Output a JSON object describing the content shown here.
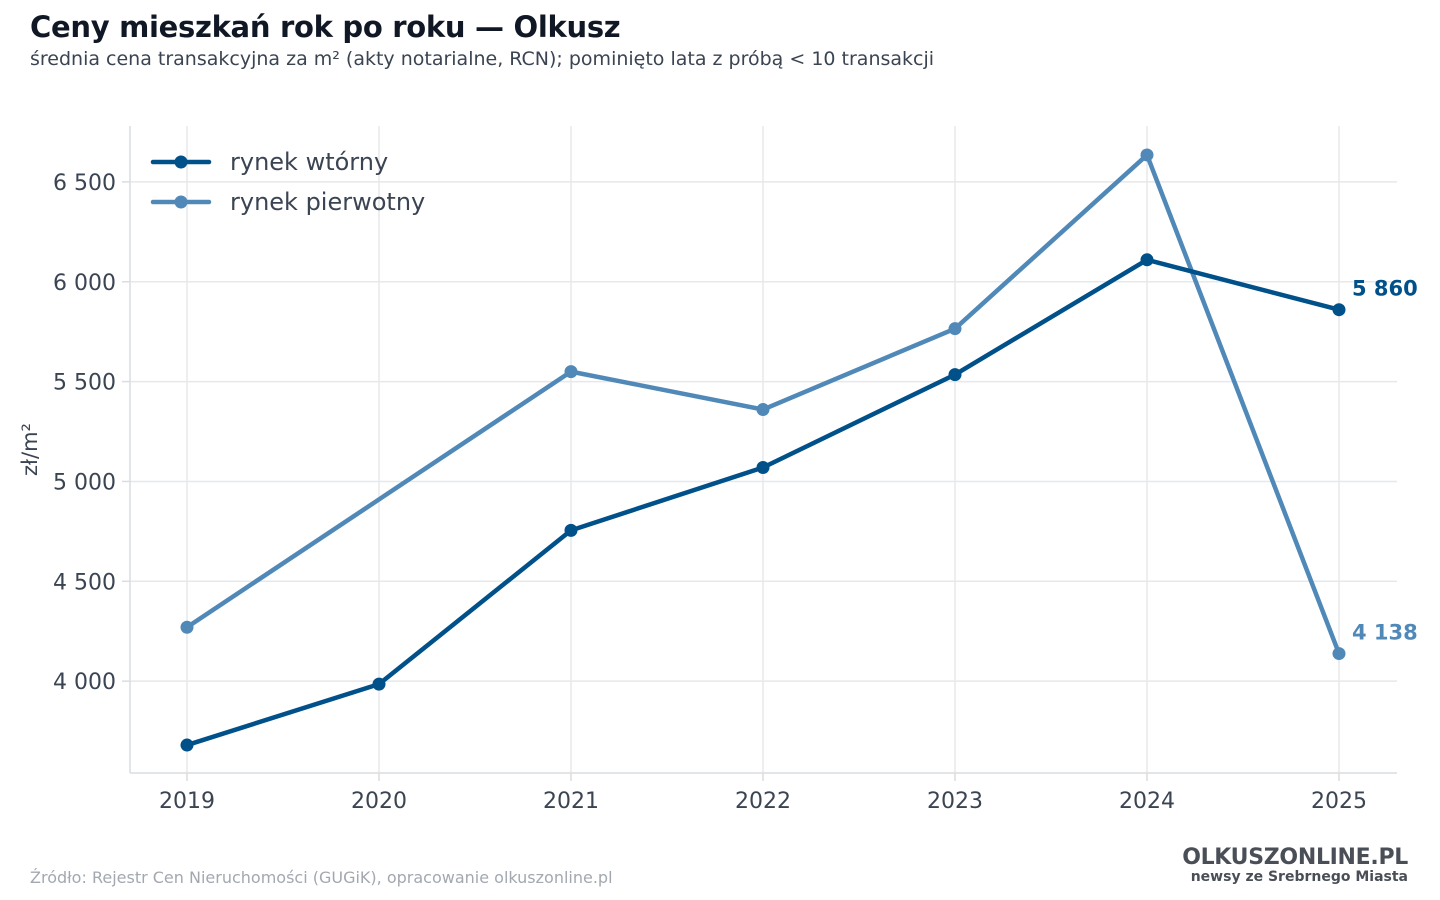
{
  "header": {
    "title": "Ceny mieszkań rok po roku — Olkusz",
    "subtitle": "średnia cena transakcyjna za m² (akty notarialne, RCN); pominięto lata z próbą < 10 transakcji"
  },
  "footer": {
    "source": "Źródło: Rejestr Cen Nieruchomości (GUGiK), opracowanie olkuszonline.pl",
    "brand_name": "OLKUSZONLINE.PL",
    "brand_tagline": "newsy ze Srebrnego Miasta"
  },
  "chart_data": {
    "type": "line",
    "title": "Ceny mieszkań rok po roku — Olkusz",
    "subtitle": "średnia cena transakcyjna za m² (akty notarialne, RCN); pominięto lata z próbą < 10 transakcji",
    "xlabel": "",
    "ylabel": "zł/m²",
    "categories": [
      "2019",
      "2020",
      "2021",
      "2022",
      "2023",
      "2024",
      "2025"
    ],
    "ylim": [
      3540,
      6780
    ],
    "yticks": [
      4000,
      4500,
      5000,
      5500,
      6000,
      6500
    ],
    "ytick_labels": [
      "4 000",
      "4 500",
      "5 000",
      "5 500",
      "6 000",
      "6 500"
    ],
    "grid": true,
    "legend_position": "top-left",
    "series": [
      {
        "name": "rynek wtórny",
        "color": "#00508a",
        "values": [
          3680,
          3985,
          4755,
          5070,
          5535,
          6110,
          5860
        ],
        "end_label": "5 860"
      },
      {
        "name": "rynek pierwotny",
        "color": "#5089b8",
        "values": [
          4270,
          null,
          5550,
          5360,
          5765,
          6635,
          4138
        ],
        "end_label": "4 138"
      }
    ]
  }
}
